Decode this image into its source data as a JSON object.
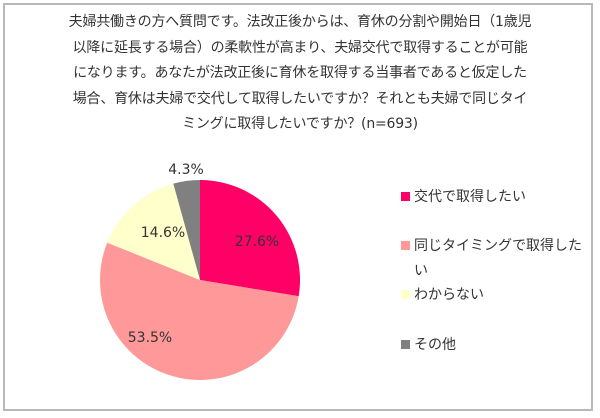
{
  "question": {
    "lines": [
      "夫婦共働きの方へ質問です。法改正後からは、育休の分割や開始日（1歳児",
      "以降に延長する場合）の柔軟性が高まり、夫婦交代で取得することが可能",
      "になります。あなたが法改正後に育休を取得する当事者であると仮定した",
      "場合、育休は夫婦で交代して取得したいですか？それとも夫婦で同じタイ",
      "ミングに取得したいですか？(n=693)"
    ]
  },
  "chart_data": {
    "type": "pie",
    "title": "夫婦共働きの方へ質問です。法改正後からは、育休の分割や開始日（1歳児以降に延長する場合）の柔軟性が高まり、夫婦交代で取得することが可能になります。あなたが法改正後に育休を取得する当事者であると仮定した場合、育休は夫婦で交代して取得したいですか？それとも夫婦で同じタイミングに取得したいですか？(n=693)",
    "n": 693,
    "categories": [
      "交代で取得したい",
      "同じタイミングで取得したい",
      "わからない",
      "その他"
    ],
    "values": [
      27.6,
      53.5,
      14.6,
      4.3
    ],
    "labels": [
      "27.6%",
      "53.5%",
      "14.6%",
      "4.3%"
    ],
    "colors": [
      "#ff0066",
      "#ff9999",
      "#ffffcc",
      "#808080"
    ],
    "start_angle": "12 o'clock, clockwise",
    "legend_position": "right"
  },
  "legend": {
    "items": [
      {
        "label": "交代で取得したい",
        "color": "#ff0066"
      },
      {
        "label": "同じタイミングで取得したい",
        "color": "#ff9999"
      },
      {
        "label": "わからない",
        "color": "#ffffcc"
      },
      {
        "label": "その他",
        "color": "#808080"
      }
    ]
  },
  "slice_labels": {
    "s0": "27.6%",
    "s1": "53.5%",
    "s2": "14.6%",
    "s3": "4.3%"
  }
}
